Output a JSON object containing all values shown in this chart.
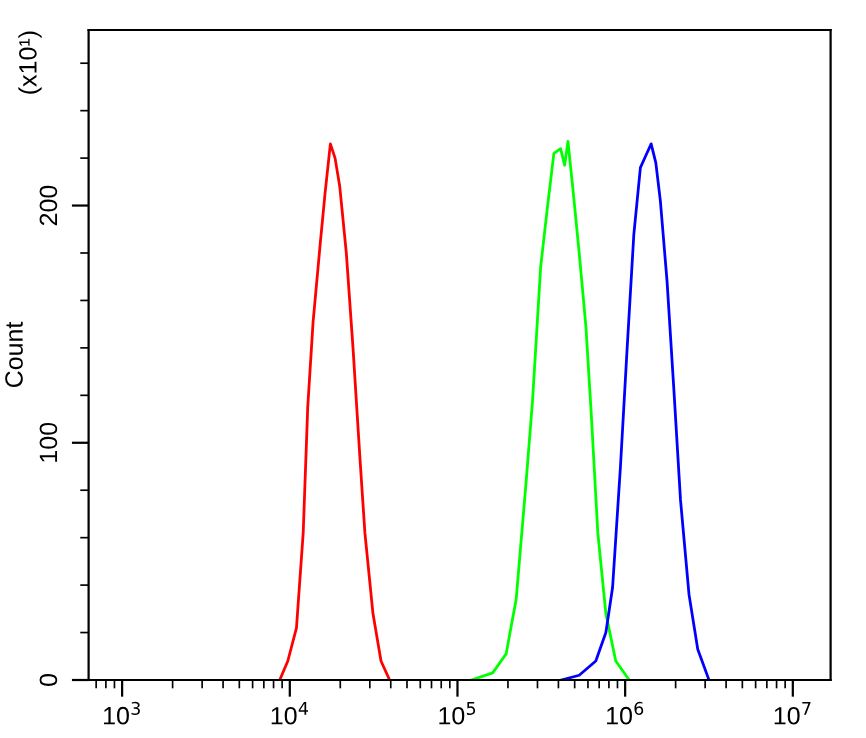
{
  "chart_data": {
    "type": "line",
    "ylabel": "Count",
    "annotations": [
      "(x10¹)"
    ],
    "log": "x",
    "grid": false,
    "legend": false,
    "marker": "none",
    "line_style": "solid",
    "xlim": [
      631,
      16800000
    ],
    "ylim": [
      0,
      274
    ],
    "xticks": [
      {
        "value": 1000,
        "label": "10$^{3}$"
      },
      {
        "value": 10000,
        "label": "10$^{4}$"
      },
      {
        "value": 100000,
        "label": "10$^{5}$"
      },
      {
        "value": 1000000,
        "label": "10$^{6}$"
      },
      {
        "value": 10000000,
        "label": "10$^{7}$"
      }
    ],
    "yticks": [
      0,
      100,
      200
    ],
    "series": [
      {
        "color": "#ff0000",
        "x": [
          8710,
          9730,
          10960,
          12020,
          12790,
          13770,
          15100,
          16220,
          17460,
          18620,
          19860,
          21730,
          23820,
          26120,
          28050,
          31330,
          34990,
          39360
        ],
        "values": [
          0,
          8,
          22,
          62,
          115,
          151,
          182,
          205,
          226,
          220,
          208,
          180,
          140,
          95,
          62,
          28,
          8,
          0
        ]
      },
      {
        "color": "#00ff00",
        "x": [
          121100,
          162200,
          195000,
          223900,
          257000,
          280500,
          313300,
          343600,
          375800,
          412100,
          435500,
          456000,
          486400,
          532100,
          583400,
          628100,
          687100,
          767400,
          879000,
          1057000
        ],
        "values": [
          0,
          3,
          11,
          34,
          84,
          118,
          174,
          199,
          222,
          224,
          217,
          227,
          208,
          180,
          149,
          112,
          62,
          28,
          8,
          0
        ]
      },
      {
        "color": "#0000ff",
        "x": [
          415900,
          532100,
          668300,
          767400,
          841400,
          937600,
          1028000,
          1127000,
          1233000,
          1327000,
          1429000,
          1524000,
          1622000,
          1778000,
          1950000,
          2138000,
          2404000,
          2710000,
          3162000
        ],
        "values": [
          0,
          2,
          8,
          20,
          39,
          90,
          140,
          188,
          216,
          221,
          226,
          218,
          202,
          168,
          123,
          76,
          36,
          13,
          0
        ]
      }
    ]
  }
}
